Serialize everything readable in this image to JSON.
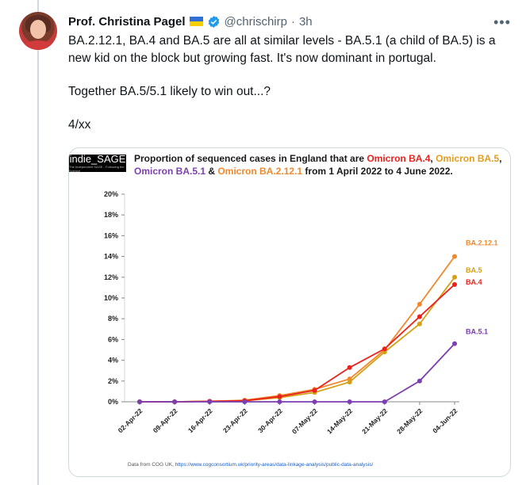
{
  "tweet": {
    "author_name": "Prof. Christina Pagel",
    "handle": "@chrischirp",
    "separator": "·",
    "time": "3h",
    "more_icon": "more-horizontal-icon",
    "text_lines": [
      "BA.2.12.1, BA.4 and BA.5 are all at similar levels - BA.5.1 (a child of BA.5) is a new kid on the block but growing fast. It's now dominant in portugal.",
      "Together BA.5/5.1 likely to win out...?",
      "4/xx"
    ]
  },
  "card": {
    "logo_text": "indie_SAGE",
    "logo_subtext": "The Independent SAGE - Following the Science",
    "title_parts": [
      {
        "text": "Proportion of sequenced cases in England that are ",
        "color": "dark"
      },
      {
        "text": "Omicron BA.4",
        "color": "red"
      },
      {
        "text": ", ",
        "color": "dark"
      },
      {
        "text": "Omicron BA.5",
        "color": "gold"
      },
      {
        "text": ", ",
        "color": "dark"
      },
      {
        "text": "Omicron BA.5.1",
        "color": "purple"
      },
      {
        "text": " & ",
        "color": "dark"
      },
      {
        "text": "Omicron BA.2.12.1",
        "color": "orange"
      },
      {
        "text": " from 1 April 2022 to 4 June 2022.",
        "color": "dark"
      }
    ],
    "source_prefix": "Data from COG UK, ",
    "source_link": "https://www.cogconsortium.uk/priority-areas/data-linkage-analysis/public-data-analysis/"
  },
  "colors": {
    "red": "#e8231d",
    "gold": "#d4a017",
    "purple": "#7b3fb0",
    "orange": "#f0892e",
    "axis_text": "#222222",
    "grid": "#d9d9d9"
  },
  "chart_data": {
    "type": "line",
    "title": "Proportion of sequenced cases in England that are Omicron BA.4, Omicron BA.5, Omicron BA.5.1 & Omicron BA.2.12.1 from 1 April 2022 to 4 June 2022.",
    "xlabel": "",
    "ylabel": "",
    "categories": [
      "02-Apr-22",
      "09-Apr-22",
      "16-Apr-22",
      "23-Apr-22",
      "30-Apr-22",
      "07-May-22",
      "14-May-22",
      "21-May-22",
      "28-May-22",
      "04-Jun-22"
    ],
    "y_ticks": [
      "0%",
      "2%",
      "4%",
      "6%",
      "8%",
      "10%",
      "12%",
      "14%",
      "16%",
      "18%",
      "20%"
    ],
    "ylim": [
      0,
      20
    ],
    "grid": true,
    "legend": "end-of-line labels",
    "series": [
      {
        "name": "BA.2.12.1",
        "color_key": "orange",
        "values": [
          0,
          0,
          0.05,
          0.15,
          0.6,
          1.2,
          2.2,
          5.0,
          9.4,
          14.0
        ]
      },
      {
        "name": "BA.5",
        "color_key": "gold",
        "values": [
          0,
          0,
          0.05,
          0.1,
          0.4,
          0.9,
          1.9,
          4.8,
          7.5,
          12.0
        ]
      },
      {
        "name": "BA.4",
        "color_key": "red",
        "values": [
          0,
          0,
          0.05,
          0.1,
          0.5,
          1.1,
          3.3,
          5.1,
          8.2,
          11.3
        ]
      },
      {
        "name": "BA.5.1",
        "color_key": "purple",
        "values": [
          0,
          0,
          0,
          0,
          0,
          0,
          0,
          0,
          2.0,
          5.6
        ]
      }
    ]
  }
}
